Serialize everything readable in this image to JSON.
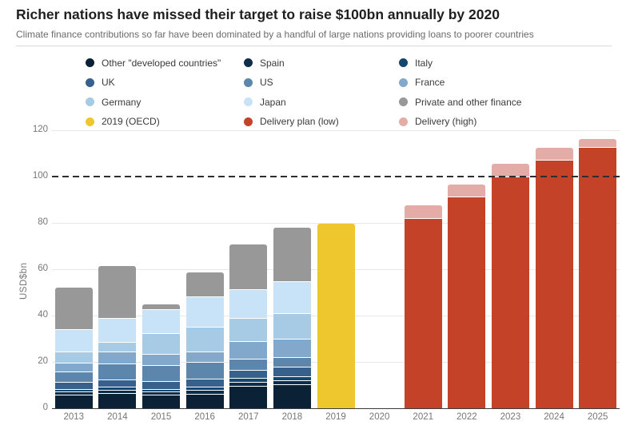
{
  "header": {
    "title": "Richer nations have missed their target to raise $100bn annually by 2020",
    "subtitle": "Climate finance contributions so far have been dominated by a handful of large nations providing loans to poorer countries"
  },
  "axis": {
    "y_label": "USD$bn",
    "y_ticks": [
      "0",
      "20",
      "40",
      "60",
      "80",
      "100",
      "120"
    ],
    "target_value": 100
  },
  "legend": {
    "columns": [
      [
        {
          "label": "Other \"developed countries\"",
          "color": "#0b2135"
        },
        {
          "label": "UK",
          "color": "#35618c"
        },
        {
          "label": "Germany",
          "color": "#a7cbe4"
        },
        {
          "label": "2019 (OECD)",
          "color": "#eec72f"
        }
      ],
      [
        {
          "label": "Spain",
          "color": "#0e2d4a"
        },
        {
          "label": "US",
          "color": "#5c86ac"
        },
        {
          "label": "Japan",
          "color": "#c8e3f7"
        },
        {
          "label": "Delivery plan (low)",
          "color": "#c44328"
        }
      ],
      [
        {
          "label": "Italy",
          "color": "#12486f"
        },
        {
          "label": "France",
          "color": "#82a9cc"
        },
        {
          "label": "Private and other finance",
          "color": "#989898"
        },
        {
          "label": "Delivery (high)",
          "color": "#e3aca6"
        }
      ]
    ]
  },
  "chart_data": {
    "type": "bar",
    "title": "Richer nations have missed their target to raise $100bn annually by 2020",
    "ylabel": "USD$bn",
    "ylim": [
      0,
      120
    ],
    "target_line": 100,
    "legend_position": "top",
    "grid": "horizontal-light",
    "categories": [
      "2013",
      "2014",
      "2015",
      "2016",
      "2017",
      "2018",
      "2019",
      "2020",
      "2021",
      "2022",
      "2023",
      "2024",
      "2025"
    ],
    "stacks": {
      "order": [
        "other_developed",
        "spain",
        "italy",
        "uk",
        "us",
        "france",
        "germany",
        "japan",
        "private_other"
      ],
      "colors": {
        "other_developed": "#0b2135",
        "spain": "#0e2d4a",
        "italy": "#12486f",
        "uk": "#35618c",
        "us": "#5c86ac",
        "france": "#82a9cc",
        "germany": "#a7cbe4",
        "japan": "#c8e3f7",
        "private_other": "#989898"
      },
      "years": {
        "2013": [
          6.0,
          1.1,
          1.3,
          3.1,
          4.3,
          3.8,
          5.0,
          9.6,
          17.8
        ],
        "2014": [
          6.7,
          1.1,
          1.6,
          2.9,
          7.0,
          5.2,
          4.2,
          10.4,
          22.4
        ],
        "2015": [
          6.0,
          1.1,
          1.3,
          3.2,
          6.9,
          4.9,
          8.9,
          10.4,
          2.1
        ],
        "2016": [
          6.3,
          1.5,
          1.4,
          3.5,
          7.4,
          4.3,
          10.7,
          13.2,
          10.3
        ],
        "2017": [
          9.8,
          1.5,
          1.7,
          3.7,
          4.6,
          7.7,
          10.1,
          12.4,
          19.1
        ],
        "2018": [
          10.3,
          1.8,
          1.7,
          4.2,
          4.2,
          7.9,
          10.9,
          13.8,
          23.0
        ]
      },
      "totals": {
        "2013": 52.0,
        "2014": 61.6,
        "2015": 44.8,
        "2016": 58.6,
        "2017": 70.6,
        "2018": 77.8
      }
    },
    "oecd_2019": {
      "year": "2019",
      "value": 79.5,
      "color": "#eec72f"
    },
    "delivery": {
      "years": [
        "2021",
        "2022",
        "2023",
        "2024",
        "2025"
      ],
      "low": [
        82.2,
        91.3,
        100.1,
        107.2,
        112.8
      ],
      "high": [
        87.6,
        96.7,
        105.4,
        112.5,
        116.2
      ],
      "low_color": "#c44328",
      "high_color": "#e3aca6"
    }
  }
}
